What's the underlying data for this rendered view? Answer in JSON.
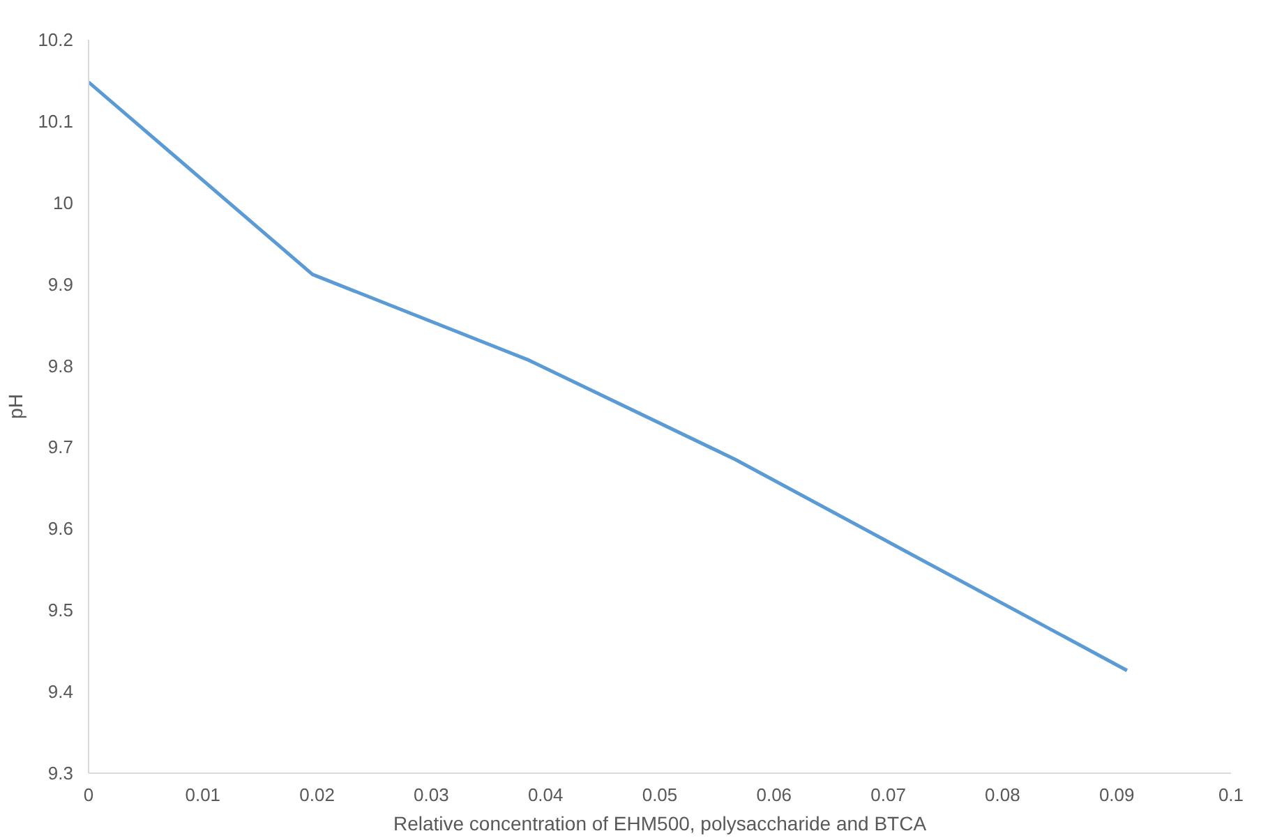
{
  "chart_data": {
    "type": "line",
    "xlabel": "Relative concentration of EHM500, polysaccharide and BTCA",
    "ylabel": "pH",
    "x": [
      0,
      0.0196,
      0.0385,
      0.0566,
      0.0909
    ],
    "series": [
      {
        "color": "#5b9bd5",
        "values": [
          10.148,
          9.912,
          9.807,
          9.685,
          9.426
        ]
      }
    ],
    "xlim": [
      0,
      0.1
    ],
    "xticks": [
      0,
      0.01,
      0.02,
      0.03,
      0.04,
      0.05,
      0.06,
      0.07,
      0.08,
      0.09,
      0.1
    ],
    "ylim": [
      9.3,
      10.2
    ],
    "yticks": [
      9.3,
      9.4,
      9.5,
      9.6,
      9.7,
      9.8,
      9.9,
      10,
      10.1,
      10.2
    ],
    "grid": false,
    "marker": "none",
    "line_style": "solid"
  }
}
